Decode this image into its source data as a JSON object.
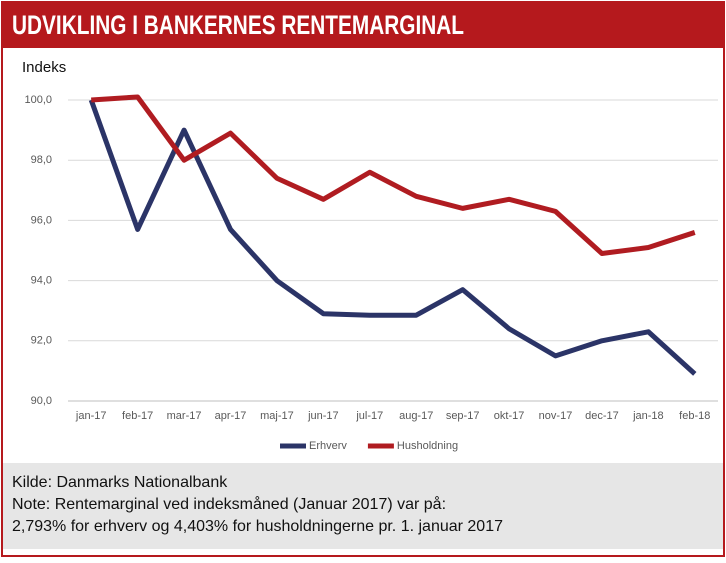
{
  "chart_data": {
    "type": "line",
    "title": "UDVIKLING I BANKERNES RENTEMARGINAL",
    "ylabel": "Indeks",
    "categories": [
      "jan-17",
      "feb-17",
      "mar-17",
      "apr-17",
      "maj-17",
      "jun-17",
      "jul-17",
      "aug-17",
      "sep-17",
      "okt-17",
      "nov-17",
      "dec-17",
      "jan-18",
      "feb-18"
    ],
    "series": [
      {
        "name": "Erhverv",
        "color": "#2b3467",
        "values": [
          100.0,
          95.7,
          99.0,
          95.7,
          94.0,
          92.9,
          92.85,
          92.85,
          93.7,
          92.4,
          91.5,
          92.0,
          92.3,
          90.9
        ]
      },
      {
        "name": "Husholdning",
        "color": "#b01c21",
        "values": [
          100.0,
          100.1,
          98.0,
          98.9,
          97.4,
          96.7,
          97.6,
          96.8,
          96.4,
          96.7,
          96.3,
          94.9,
          95.1,
          95.6
        ]
      }
    ],
    "ylim": [
      90,
      100
    ],
    "yticks": [
      {
        "value": 90,
        "label": "90,0"
      },
      {
        "value": 92,
        "label": "92,0"
      },
      {
        "value": 94,
        "label": "94,0"
      },
      {
        "value": 96,
        "label": "96,0"
      },
      {
        "value": 98,
        "label": "98,0"
      },
      {
        "value": 100,
        "label": "100,0"
      }
    ],
    "grid": true,
    "legend": "bottom"
  },
  "footer": {
    "lines": [
      "Kilde: Danmarks Nationalbank",
      "Note: Rentemarginal ved indeksmåned (Januar 2017) var på:",
      "2,793% for erhverv og 4,403% for husholdningerne pr. 1. januar 2017"
    ]
  }
}
